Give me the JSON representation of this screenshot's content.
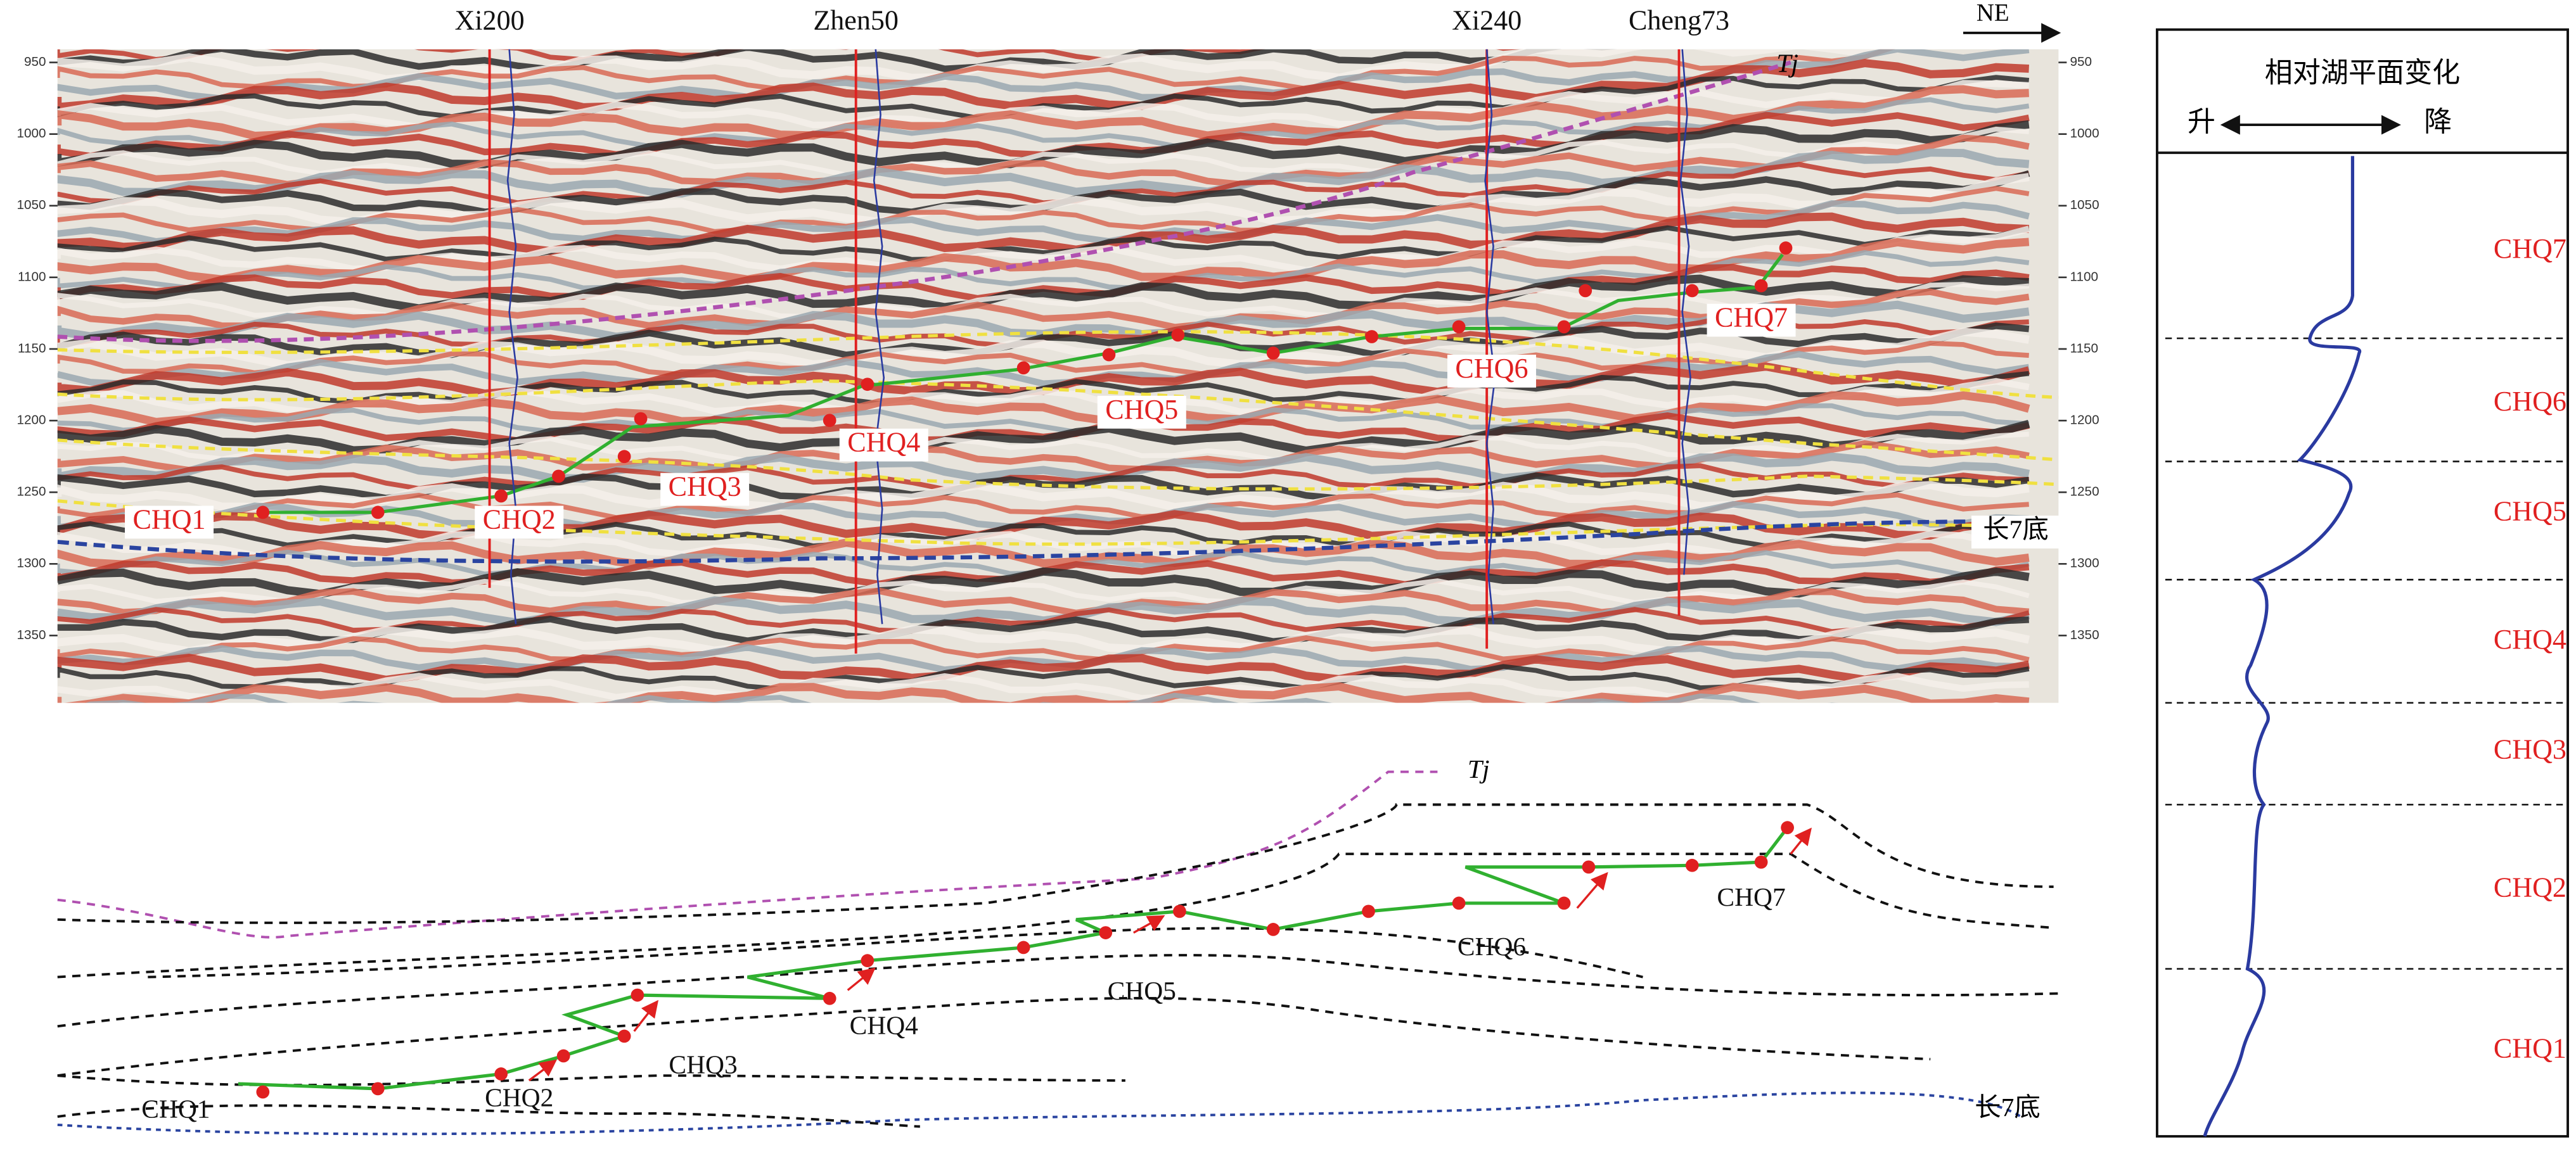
{
  "seismic_section": {
    "wells": [
      "Xi200",
      "Zhen50",
      "Xi240",
      "Cheng73"
    ],
    "direction": "NE",
    "left_axis_ticks": [
      950,
      1000,
      1050,
      1100,
      1150,
      1200,
      1250,
      1300,
      1350
    ],
    "right_axis_ticks": [
      950,
      1000,
      1050,
      1100,
      1150,
      1200,
      1250,
      1300,
      1350
    ],
    "horizons": {
      "top": "Tj",
      "base": "长7底"
    },
    "sequences": [
      "CHQ1",
      "CHQ2",
      "CHQ3",
      "CHQ4",
      "CHQ5",
      "CHQ6",
      "CHQ7"
    ]
  },
  "interpretation": {
    "horizons": {
      "top": "Tj",
      "base": "长7底"
    },
    "sequences": [
      "CHQ1",
      "CHQ2",
      "CHQ3",
      "CHQ4",
      "CHQ5",
      "CHQ6",
      "CHQ7"
    ]
  },
  "lake_level_panel": {
    "title": "相对湖平面变化",
    "rise": "升",
    "fall": "降",
    "sequences": [
      "CHQ7",
      "CHQ6",
      "CHQ5",
      "CHQ4",
      "CHQ3",
      "CHQ2",
      "CHQ1"
    ]
  }
}
